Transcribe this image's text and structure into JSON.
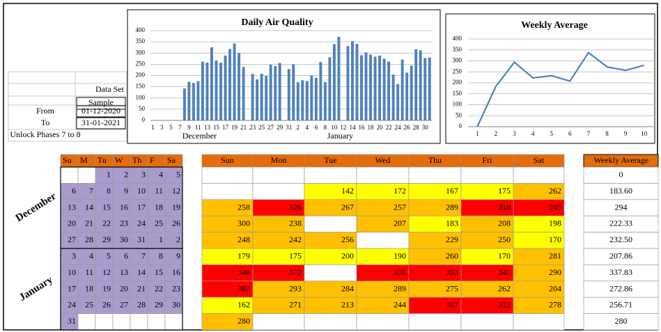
{
  "data_set": {
    "label": "Data Set",
    "value": "Sample",
    "from_label": "From",
    "from": "01-12-2020",
    "to_label": "To",
    "to": "31-01-2021",
    "note": "Unlock Phases 7 to 8"
  },
  "chart_data": [
    {
      "type": "bar",
      "title": "Daily Air Quality",
      "categories": [
        "1",
        null,
        "3",
        null,
        "5",
        null,
        "7",
        null,
        "9",
        null,
        "11",
        null,
        "13",
        null,
        "15",
        null,
        "17",
        null,
        "19",
        null,
        "21",
        null,
        "23",
        null,
        "25",
        null,
        "27",
        null,
        "29",
        null,
        "31",
        null,
        "2",
        null,
        "4",
        null,
        "6",
        null,
        "8",
        null,
        "10",
        null,
        "12",
        null,
        "14",
        null,
        "16",
        null,
        "18",
        null,
        "20",
        null,
        "22",
        null,
        "24",
        null,
        "26",
        null,
        "28",
        null,
        "30",
        null
      ],
      "x_group_labels": [
        "December",
        "January"
      ],
      "values": [
        null,
        null,
        null,
        null,
        null,
        null,
        null,
        142,
        172,
        167,
        175,
        262,
        258,
        326,
        267,
        257,
        289,
        318,
        343,
        300,
        238,
        null,
        207,
        183,
        208,
        198,
        248,
        242,
        256,
        null,
        229,
        250,
        170,
        179,
        175,
        200,
        190,
        260,
        170,
        281,
        340,
        372,
        null,
        331,
        353,
        341,
        290,
        303,
        293,
        284,
        289,
        275,
        262,
        204,
        162,
        271,
        213,
        244,
        317,
        312,
        278,
        280
      ],
      "color": "#4f81bd",
      "ylim": [
        0,
        400
      ],
      "yticks": [
        0,
        50,
        100,
        150,
        200,
        250,
        300,
        350,
        400
      ],
      "grid": true
    },
    {
      "type": "line",
      "title": "Weekly Average",
      "categories": [
        "1",
        "2",
        "3",
        "4",
        "5",
        "6",
        "7",
        "8",
        "9",
        "10"
      ],
      "values": [
        0,
        183.6,
        294,
        222.33,
        232.5,
        207.86,
        337.83,
        272.86,
        256.71,
        280
      ],
      "color": "#4f81bd",
      "ylim": [
        0,
        400
      ],
      "yticks": [
        0,
        50,
        100,
        150,
        200,
        250,
        300,
        350,
        400
      ],
      "grid": true
    }
  ],
  "calendar": {
    "weekday_short": [
      "Su",
      "M",
      "Tu",
      "W",
      "Th",
      "F",
      "Sa"
    ],
    "weekday": [
      "Sun",
      "Mon",
      "Tue",
      "Wed",
      "Thu",
      "Fri",
      "Sat"
    ],
    "months": [
      {
        "name": "December",
        "days": [
          [
            null,
            null,
            "1",
            "2",
            "3",
            "4",
            "5"
          ],
          [
            "6",
            "7",
            "8",
            "9",
            "10",
            "11",
            "12"
          ],
          [
            "13",
            "14",
            "15",
            "16",
            "17",
            "18",
            "19"
          ],
          [
            "20",
            "21",
            "22",
            "23",
            "24",
            "25",
            "26"
          ],
          [
            "27",
            "28",
            "29",
            "30",
            "31",
            "1",
            "2"
          ]
        ]
      },
      {
        "name": "January",
        "days": [
          [
            "3",
            "4",
            "5",
            "6",
            "7",
            "8",
            "9"
          ],
          [
            "10",
            "11",
            "12",
            "13",
            "14",
            "15",
            "16"
          ],
          [
            "17",
            "18",
            "19",
            "20",
            "21",
            "22",
            "23"
          ],
          [
            "24",
            "25",
            "26",
            "27",
            "28",
            "29",
            "30"
          ],
          [
            "31",
            null,
            null,
            null,
            null,
            null,
            null
          ]
        ]
      }
    ],
    "values": [
      [
        null,
        null,
        null,
        null,
        null,
        null,
        null
      ],
      [
        null,
        null,
        142,
        172,
        167,
        175,
        262
      ],
      [
        258,
        326,
        267,
        257,
        289,
        318,
        343
      ],
      [
        300,
        238,
        null,
        207,
        183,
        208,
        198
      ],
      [
        248,
        242,
        256,
        null,
        229,
        250,
        170
      ],
      [
        179,
        175,
        200,
        190,
        260,
        170,
        281
      ],
      [
        340,
        372,
        null,
        331,
        353,
        341,
        290
      ],
      [
        303,
        293,
        284,
        289,
        275,
        262,
        204
      ],
      [
        162,
        271,
        213,
        244,
        317,
        312,
        278
      ],
      [
        280,
        null,
        null,
        null,
        null,
        null,
        null
      ]
    ]
  },
  "weekly_average": {
    "header": "Weekly Average",
    "values": [
      "0",
      "183.60",
      "294",
      "222.33",
      "232.50",
      "207.86",
      "337.83",
      "272.86",
      "256.71",
      "280"
    ]
  }
}
